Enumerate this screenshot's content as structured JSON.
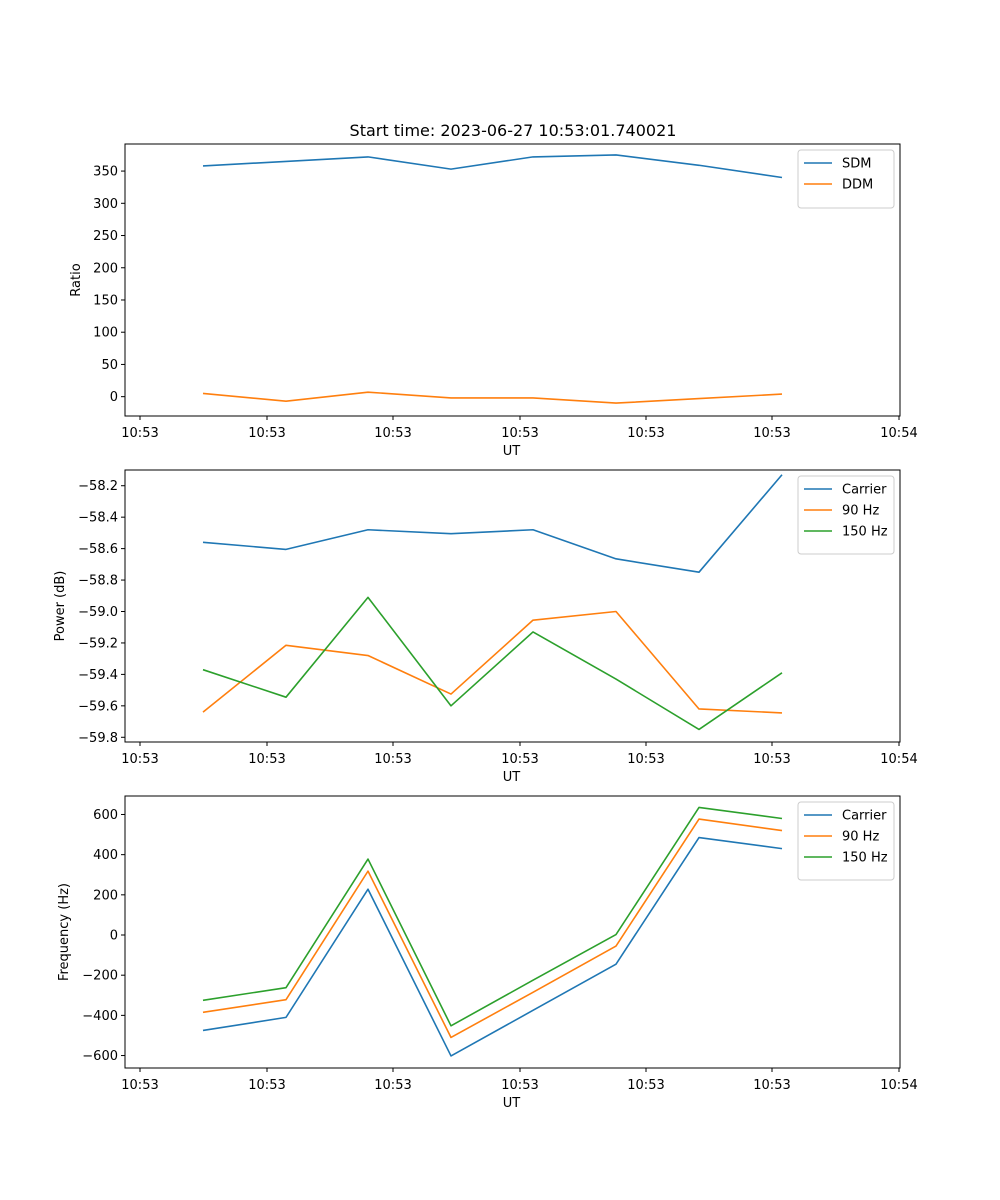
{
  "title": "Start time: 2023-06-27 10:53:01.740021",
  "colors": {
    "blue": "#1f77b4",
    "orange": "#ff7f0e",
    "green": "#2ca02c"
  },
  "chart_data": [
    {
      "type": "line",
      "title": "Start time: 2023-06-27 10:53:01.740021",
      "xlabel": "UT",
      "ylabel": "Ratio",
      "xticks": [
        "10:53",
        "10:53",
        "10:53",
        "10:53",
        "10:53",
        "10:53",
        "10:53"
      ],
      "xtick_last": "10:54",
      "ylim": [
        -30,
        392
      ],
      "yticks": [
        "0",
        "50",
        "100",
        "150",
        "200",
        "250",
        "300",
        "350"
      ],
      "ytick_values": [
        0,
        50,
        100,
        150,
        200,
        250,
        300,
        350
      ],
      "legend_position": "upper right",
      "series": [
        {
          "name": "SDM",
          "color": "#1f77b4",
          "values": [
            358,
            365,
            372,
            353,
            372,
            375,
            359,
            340
          ]
        },
        {
          "name": "DDM",
          "color": "#ff7f0e",
          "values": [
            5,
            -7,
            7,
            -2,
            -2,
            -10,
            -3,
            4
          ]
        }
      ]
    },
    {
      "type": "line",
      "xlabel": "UT",
      "ylabel": "Power (dB)",
      "xticks": [
        "10:53",
        "10:53",
        "10:53",
        "10:53",
        "10:53",
        "10:53",
        "10:53"
      ],
      "xtick_last": "10:54",
      "ylim": [
        -59.83,
        -58.1
      ],
      "yticks": [
        "−59.8",
        "−59.6",
        "−59.4",
        "−59.2",
        "−59.0",
        "−58.8",
        "−58.6",
        "−58.4",
        "−58.2"
      ],
      "ytick_values": [
        -59.8,
        -59.6,
        -59.4,
        -59.2,
        -59.0,
        -58.8,
        -58.6,
        -58.4,
        -58.2
      ],
      "legend_position": "upper right",
      "series": [
        {
          "name": "Carrier",
          "color": "#1f77b4",
          "values": [
            -58.56,
            -58.605,
            -58.48,
            -58.505,
            -58.48,
            -58.665,
            -58.75,
            -58.13
          ]
        },
        {
          "name": "90 Hz",
          "color": "#ff7f0e",
          "values": [
            -59.64,
            -59.215,
            -59.28,
            -59.525,
            -59.055,
            -59.0,
            -59.62,
            -59.645
          ]
        },
        {
          "name": "150 Hz",
          "color": "#2ca02c",
          "values": [
            -59.37,
            -59.545,
            -58.91,
            -59.6,
            -59.13,
            -59.43,
            -59.75,
            -59.39
          ]
        }
      ]
    },
    {
      "type": "line",
      "xlabel": "UT",
      "ylabel": "Frequency (Hz)",
      "xticks": [
        "10:53",
        "10:53",
        "10:53",
        "10:53",
        "10:53",
        "10:53",
        "10:53"
      ],
      "xtick_last": "10:54",
      "ylim": [
        -662,
        692
      ],
      "yticks": [
        "−600",
        "−400",
        "−200",
        "0",
        "200",
        "400",
        "600"
      ],
      "ytick_values": [
        -600,
        -400,
        -200,
        0,
        200,
        400,
        600
      ],
      "legend_position": "upper right",
      "series": [
        {
          "name": "Carrier",
          "color": "#1f77b4",
          "values": [
            -475,
            -410,
            228,
            -602,
            -375,
            -145,
            485,
            430
          ]
        },
        {
          "name": "90 Hz",
          "color": "#ff7f0e",
          "values": [
            -385,
            -322,
            318,
            -510,
            -285,
            -55,
            577,
            520
          ]
        },
        {
          "name": "150 Hz",
          "color": "#2ca02c",
          "values": [
            -325,
            -262,
            378,
            -452,
            -225,
            2,
            635,
            580
          ]
        }
      ]
    }
  ]
}
